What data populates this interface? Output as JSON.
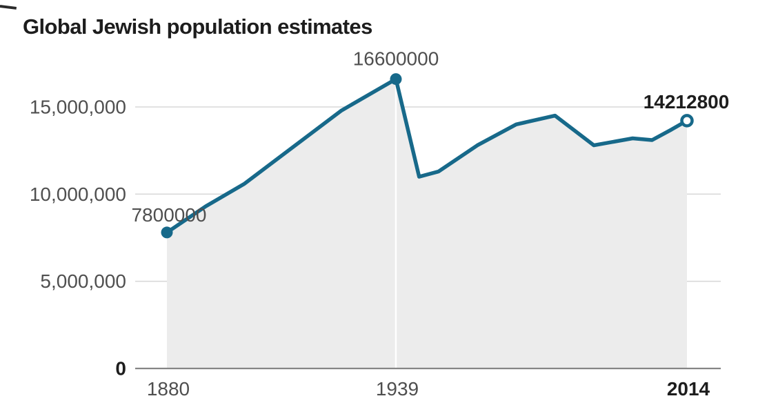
{
  "title": "Global Jewish population estimates",
  "chart_data": {
    "type": "area",
    "title": "Global Jewish population estimates",
    "x": [
      1880,
      1890,
      1900,
      1925,
      1939,
      1945,
      1950,
      1960,
      1970,
      1980,
      1990,
      2000,
      2005,
      2010,
      2014
    ],
    "values": [
      7800000,
      9300000,
      10600000,
      14800000,
      16600000,
      11000000,
      11300000,
      12800000,
      14000000,
      14500000,
      12800000,
      13200000,
      13100000,
      13700000,
      14212800
    ],
    "xlim": [
      1880,
      2014
    ],
    "ylim": [
      0,
      16600000
    ],
    "grid": "horizontal",
    "legend": "none",
    "vertical_divider_year": 1939,
    "y_ticks": [
      {
        "value": 0,
        "label": "0",
        "bold": true
      },
      {
        "value": 5000000,
        "label": "5,000,000",
        "bold": false
      },
      {
        "value": 10000000,
        "label": "10,000,000",
        "bold": false
      },
      {
        "value": 15000000,
        "label": "15,000,000",
        "bold": false
      }
    ],
    "x_ticks": [
      {
        "year": 1880,
        "label": "1880",
        "bold": false
      },
      {
        "year": 1939,
        "label": "1939",
        "bold": false
      },
      {
        "year": 2014,
        "label": "2014",
        "bold": true
      }
    ],
    "annotations": [
      {
        "year": 1880,
        "text": "7800000",
        "bold": false,
        "marker": "filled"
      },
      {
        "year": 1939,
        "text": "16600000",
        "bold": false,
        "marker": "filled"
      },
      {
        "year": 2014,
        "text": "14212800",
        "bold": true,
        "marker": "open"
      }
    ],
    "colors": {
      "line": "#17698a",
      "area": "#ececec",
      "grid": "#d9d9d9",
      "axis": "#858585",
      "divider": "#ffffff",
      "tick_text": "#4f4f4f",
      "emphasis_text": "#1d1d1d",
      "background": "#ffffff"
    }
  }
}
